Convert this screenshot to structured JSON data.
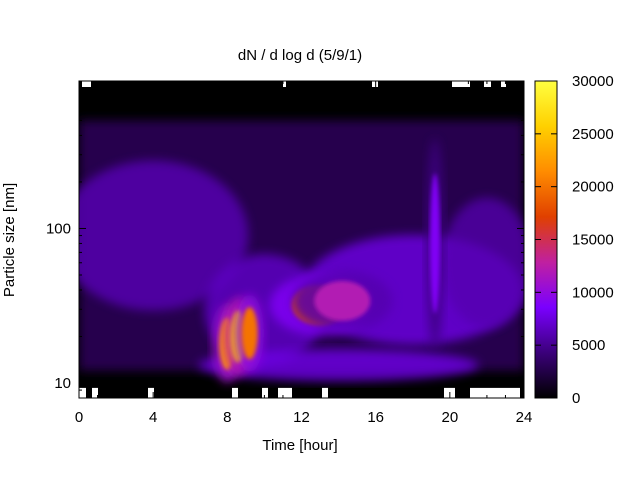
{
  "chart_data": {
    "type": "heatmap",
    "title": "dN / d log d (5/9/1)",
    "xlabel": "Time [hour]",
    "ylabel": "Particle size [nm]",
    "xlim": [
      0,
      24
    ],
    "ylim": [
      8,
      900
    ],
    "x_scale": "linear",
    "y_scale": "log",
    "x_ticks": [
      0,
      4,
      8,
      12,
      16,
      20,
      24
    ],
    "x_tick_labels": [
      "0",
      "4",
      "8",
      "12",
      "16",
      "20",
      "24"
    ],
    "y_ticks": [
      10,
      100
    ],
    "y_tick_labels": [
      "10",
      "100"
    ],
    "colorbar": {
      "range": [
        0,
        30000
      ],
      "ticks": [
        0,
        5000,
        10000,
        15000,
        20000,
        25000,
        30000
      ],
      "tick_labels": [
        "0",
        "5000",
        "10000",
        "15000",
        "20000",
        "25000",
        "30000"
      ],
      "colormap": [
        "#000000",
        "#3b007a",
        "#7a00ff",
        "#c020a0",
        "#e04000",
        "#ff8c00",
        "#ffd000",
        "#ffff40"
      ]
    },
    "features": [
      {
        "name": "background mode",
        "x_range": [
          0,
          24
        ],
        "size_center": 90,
        "value": 6000
      },
      {
        "name": "burst",
        "x_center": 8.0,
        "size_center": 18,
        "value": 22000
      },
      {
        "name": "burst",
        "x_center": 8.6,
        "size_center": 20,
        "value": 25000
      },
      {
        "name": "burst",
        "x_center": 9.2,
        "size_center": 21,
        "value": 20000
      },
      {
        "name": "growth",
        "x_center": 13.0,
        "size_center": 32,
        "value": 18000
      },
      {
        "name": "growth",
        "x_center": 14.2,
        "size_center": 34,
        "value": 12000
      },
      {
        "name": "spike",
        "x_center": 19.2,
        "size_center": 80,
        "value": 9000
      }
    ]
  }
}
